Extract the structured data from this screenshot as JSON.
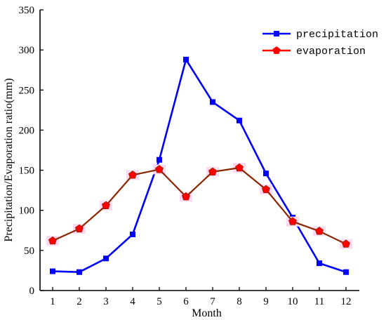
{
  "chart_data": {
    "type": "line",
    "title": "",
    "xlabel": "Month",
    "ylabel": "Precipitation/Evaporation ratio(mm)",
    "categories": [
      "1",
      "2",
      "3",
      "4",
      "5",
      "6",
      "7",
      "8",
      "9",
      "10",
      "11",
      "12"
    ],
    "ylim": [
      0,
      350
    ],
    "yticks": [
      0,
      50,
      100,
      150,
      200,
      250,
      300,
      350
    ],
    "grid": false,
    "legend_position": "top-right",
    "series": [
      {
        "name": "precipitation",
        "color": "#0000ff",
        "marker": "square",
        "values": [
          24,
          23,
          40,
          70,
          163,
          288,
          235,
          212,
          146,
          91,
          34,
          23
        ]
      },
      {
        "name": "evaporation",
        "color": "#8b2500",
        "marker_color": "#ff0000",
        "marker": "pentagon",
        "values": [
          62,
          77,
          106,
          144,
          151,
          117,
          148,
          153,
          126,
          86,
          74,
          58
        ]
      }
    ]
  }
}
